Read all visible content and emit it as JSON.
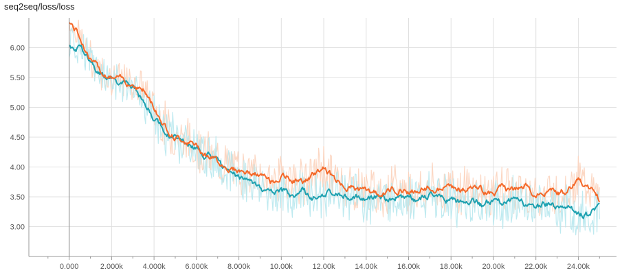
{
  "title": "seq2seq/loss/loss",
  "chart_data": {
    "type": "line",
    "title": "seq2seq/loss/loss",
    "xlabel": "",
    "ylabel": "",
    "xlim": [
      -1900,
      25800
    ],
    "ylim": [
      2.5,
      6.5
    ],
    "x_ticks": [
      0,
      2000,
      4000,
      6000,
      8000,
      10000,
      12000,
      14000,
      16000,
      18000,
      20000,
      22000,
      24000
    ],
    "x_tick_labels": [
      "0.000",
      "2.000k",
      "4.000k",
      "6.000k",
      "8.000k",
      "10.00k",
      "12.00k",
      "14.00k",
      "16.00k",
      "18.00k",
      "20.00k",
      "22.00k",
      "24.00k"
    ],
    "y_ticks": [
      3.0,
      3.5,
      4.0,
      4.5,
      5.0,
      5.5,
      6.0
    ],
    "y_tick_labels": [
      "3.00",
      "3.50",
      "4.00",
      "4.50",
      "5.00",
      "5.50",
      "6.00"
    ],
    "grid": true,
    "legend": "none",
    "colors": {
      "orange": "#f4692a",
      "orange_raw": "#fcd3bd",
      "teal": "#1ea1b0",
      "teal_raw": "#b8e8ee",
      "grid": "#e0e0e0",
      "axis": "#999999"
    },
    "series": [
      {
        "color": "orange",
        "x": [
          0,
          500,
          1000,
          1500,
          2000,
          2500,
          3000,
          3500,
          4000,
          4500,
          5000,
          5500,
          6000,
          6500,
          7000,
          7500,
          8000,
          8500,
          9000,
          9500,
          10000,
          10500,
          11000,
          11500,
          12000,
          12500,
          13000,
          13500,
          14000,
          14500,
          15000,
          15500,
          16000,
          16500,
          17000,
          17500,
          18000,
          18500,
          19000,
          19500,
          20000,
          20500,
          21000,
          21500,
          22000,
          22500,
          23000,
          23500,
          24000,
          24500,
          25000
        ],
        "values": [
          6.45,
          6.2,
          5.8,
          5.6,
          5.5,
          5.45,
          5.4,
          5.3,
          5.0,
          4.7,
          4.5,
          4.45,
          4.35,
          4.2,
          4.1,
          4.0,
          3.95,
          3.9,
          3.85,
          3.75,
          3.85,
          3.8,
          3.75,
          3.85,
          4.0,
          3.8,
          3.7,
          3.65,
          3.6,
          3.55,
          3.6,
          3.65,
          3.6,
          3.6,
          3.65,
          3.6,
          3.7,
          3.6,
          3.65,
          3.6,
          3.55,
          3.65,
          3.6,
          3.65,
          3.5,
          3.6,
          3.55,
          3.6,
          3.8,
          3.65,
          3.45
        ]
      },
      {
        "color": "teal",
        "x": [
          0,
          500,
          1000,
          1500,
          2000,
          2500,
          3000,
          3500,
          4000,
          4500,
          5000,
          5500,
          6000,
          6500,
          7000,
          7500,
          8000,
          8500,
          9000,
          9500,
          10000,
          10500,
          11000,
          11500,
          12000,
          12500,
          13000,
          13500,
          14000,
          14500,
          15000,
          15500,
          16000,
          16500,
          17000,
          17500,
          18000,
          18500,
          19000,
          19500,
          20000,
          20500,
          21000,
          21500,
          22000,
          22500,
          23000,
          23500,
          24000,
          24500,
          25000
        ],
        "values": [
          6.05,
          6.0,
          5.8,
          5.55,
          5.45,
          5.4,
          5.35,
          5.1,
          4.85,
          4.6,
          4.5,
          4.4,
          4.3,
          4.2,
          4.1,
          3.95,
          3.85,
          3.8,
          3.65,
          3.55,
          3.55,
          3.5,
          3.6,
          3.5,
          3.55,
          3.6,
          3.55,
          3.5,
          3.45,
          3.5,
          3.45,
          3.5,
          3.5,
          3.45,
          3.5,
          3.45,
          3.45,
          3.4,
          3.45,
          3.35,
          3.4,
          3.35,
          3.45,
          3.35,
          3.3,
          3.4,
          3.3,
          3.35,
          3.25,
          3.2,
          3.3
        ]
      }
    ]
  }
}
